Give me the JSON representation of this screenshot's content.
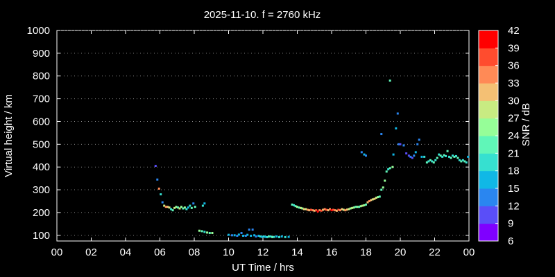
{
  "chart_data": {
    "type": "scatter",
    "title": "2025-11-10. f = 2760 kHz",
    "xlabel": "UT Time / hrs",
    "ylabel": "Virtual height / km",
    "xlim": [
      0,
      24
    ],
    "ylim": [
      75,
      1000
    ],
    "x_ticks": [
      "00",
      "02",
      "04",
      "06",
      "08",
      "10",
      "12",
      "14",
      "16",
      "18",
      "20",
      "22",
      "00"
    ],
    "y_ticks": [
      "100",
      "200",
      "300",
      "400",
      "500",
      "600",
      "700",
      "800",
      "900",
      "1000"
    ],
    "colorbar": {
      "label": "SNR / dB",
      "ticks": [
        "6",
        "9",
        "12",
        "15",
        "18",
        "21",
        "24",
        "27",
        "30",
        "33",
        "36",
        "39",
        "42"
      ],
      "colors": [
        "#7f00ff",
        "#5a4ef8",
        "#2a86f0",
        "#10b8e6",
        "#36e0d0",
        "#60f6b8",
        "#96fe98",
        "#c8eb82",
        "#f4c074",
        "#ff8a56",
        "#ff4c2e",
        "#ff0000"
      ]
    },
    "points": [
      [
        5.75,
        405,
        10
      ],
      [
        5.85,
        345,
        12
      ],
      [
        5.95,
        305,
        33
      ],
      [
        6.05,
        280,
        18
      ],
      [
        6.15,
        245,
        12
      ],
      [
        6.25,
        230,
        27
      ],
      [
        6.35,
        225,
        33
      ],
      [
        6.45,
        225,
        30
      ],
      [
        6.55,
        222,
        27
      ],
      [
        6.65,
        215,
        18
      ],
      [
        6.75,
        210,
        21
      ],
      [
        6.85,
        220,
        27
      ],
      [
        6.95,
        225,
        24
      ],
      [
        7.05,
        222,
        21
      ],
      [
        7.15,
        218,
        27
      ],
      [
        7.25,
        225,
        24
      ],
      [
        7.35,
        218,
        21
      ],
      [
        7.45,
        222,
        24
      ],
      [
        7.55,
        215,
        18
      ],
      [
        7.65,
        222,
        15
      ],
      [
        7.75,
        230,
        18
      ],
      [
        7.85,
        220,
        21
      ],
      [
        7.95,
        240,
        12
      ],
      [
        8.05,
        225,
        21
      ],
      [
        8.5,
        230,
        18
      ],
      [
        8.6,
        240,
        15
      ],
      [
        8.3,
        120,
        24
      ],
      [
        8.45,
        118,
        21
      ],
      [
        8.6,
        115,
        18
      ],
      [
        8.75,
        112,
        24
      ],
      [
        8.9,
        110,
        21
      ],
      [
        9.05,
        110,
        24
      ],
      [
        10.0,
        102,
        15
      ],
      [
        10.2,
        100,
        12
      ],
      [
        10.35,
        100,
        15
      ],
      [
        10.5,
        98,
        12
      ],
      [
        10.6,
        103,
        15
      ],
      [
        10.75,
        110,
        12
      ],
      [
        10.85,
        98,
        15
      ],
      [
        11.0,
        98,
        12
      ],
      [
        11.1,
        102,
        15
      ],
      [
        11.2,
        125,
        12
      ],
      [
        11.3,
        98,
        15
      ],
      [
        11.4,
        125,
        12
      ],
      [
        11.5,
        100,
        15
      ],
      [
        11.6,
        95,
        12
      ],
      [
        11.75,
        98,
        15
      ],
      [
        11.85,
        95,
        18
      ],
      [
        11.95,
        93,
        15
      ],
      [
        12.05,
        95,
        18
      ],
      [
        12.15,
        93,
        15
      ],
      [
        12.25,
        92,
        18
      ],
      [
        12.35,
        95,
        21
      ],
      [
        12.45,
        95,
        18
      ],
      [
        12.55,
        92,
        21
      ],
      [
        12.65,
        93,
        18
      ],
      [
        12.8,
        95,
        15
      ],
      [
        12.95,
        92,
        18
      ],
      [
        13.1,
        95,
        15
      ],
      [
        13.3,
        92,
        18
      ],
      [
        13.5,
        93,
        15
      ],
      [
        13.7,
        235,
        21
      ],
      [
        13.8,
        232,
        18
      ],
      [
        13.9,
        228,
        21
      ],
      [
        14.0,
        225,
        24
      ],
      [
        14.1,
        222,
        21
      ],
      [
        14.2,
        220,
        27
      ],
      [
        14.3,
        218,
        24
      ],
      [
        14.4,
        215,
        30
      ],
      [
        14.5,
        215,
        27
      ],
      [
        14.6,
        212,
        33
      ],
      [
        14.7,
        210,
        30
      ],
      [
        14.8,
        212,
        36
      ],
      [
        14.9,
        210,
        33
      ],
      [
        15.0,
        208,
        30
      ],
      [
        15.1,
        210,
        36
      ],
      [
        15.2,
        205,
        39
      ],
      [
        15.3,
        210,
        33
      ],
      [
        15.4,
        208,
        36
      ],
      [
        15.5,
        212,
        30
      ],
      [
        15.6,
        215,
        33
      ],
      [
        15.7,
        212,
        36
      ],
      [
        15.8,
        210,
        30
      ],
      [
        15.9,
        215,
        33
      ],
      [
        16.0,
        210,
        39
      ],
      [
        16.1,
        212,
        36
      ],
      [
        16.2,
        210,
        33
      ],
      [
        16.3,
        208,
        30
      ],
      [
        16.4,
        212,
        36
      ],
      [
        16.5,
        210,
        33
      ],
      [
        16.6,
        215,
        30
      ],
      [
        16.7,
        212,
        27
      ],
      [
        16.8,
        210,
        33
      ],
      [
        16.9,
        213,
        30
      ],
      [
        17.0,
        215,
        27
      ],
      [
        17.1,
        218,
        24
      ],
      [
        17.2,
        220,
        27
      ],
      [
        17.3,
        222,
        24
      ],
      [
        17.4,
        225,
        21
      ],
      [
        17.5,
        225,
        24
      ],
      [
        17.6,
        225,
        21
      ],
      [
        17.7,
        228,
        24
      ],
      [
        17.8,
        230,
        27
      ],
      [
        17.9,
        232,
        24
      ],
      [
        18.0,
        235,
        21
      ],
      [
        18.1,
        245,
        30
      ],
      [
        18.2,
        250,
        33
      ],
      [
        18.3,
        255,
        30
      ],
      [
        18.4,
        258,
        27
      ],
      [
        18.5,
        260,
        30
      ],
      [
        18.6,
        265,
        27
      ],
      [
        18.7,
        268,
        24
      ],
      [
        18.8,
        270,
        21
      ],
      [
        18.9,
        300,
        21
      ],
      [
        19.0,
        310,
        24
      ],
      [
        19.1,
        340,
        24
      ],
      [
        19.2,
        380,
        21
      ],
      [
        19.3,
        390,
        18
      ],
      [
        19.4,
        395,
        21
      ],
      [
        19.55,
        400,
        24
      ],
      [
        17.75,
        465,
        12
      ],
      [
        17.9,
        455,
        15
      ],
      [
        18.0,
        450,
        12
      ],
      [
        18.9,
        545,
        12
      ],
      [
        19.4,
        780,
        21
      ],
      [
        19.6,
        455,
        15
      ],
      [
        19.75,
        570,
        15
      ],
      [
        19.85,
        635,
        12
      ],
      [
        19.9,
        500,
        12
      ],
      [
        20.0,
        500,
        10
      ],
      [
        20.2,
        495,
        12
      ],
      [
        20.35,
        460,
        10
      ],
      [
        20.5,
        450,
        9
      ],
      [
        20.6,
        445,
        12
      ],
      [
        20.7,
        440,
        9
      ],
      [
        20.8,
        450,
        12
      ],
      [
        20.9,
        465,
        15
      ],
      [
        21.0,
        500,
        12
      ],
      [
        21.1,
        520,
        12
      ],
      [
        21.25,
        445,
        15
      ],
      [
        21.4,
        445,
        18
      ],
      [
        21.55,
        420,
        21
      ],
      [
        21.65,
        425,
        18
      ],
      [
        21.75,
        430,
        21
      ],
      [
        21.85,
        425,
        18
      ],
      [
        21.95,
        420,
        21
      ],
      [
        22.05,
        430,
        18
      ],
      [
        22.15,
        440,
        21
      ],
      [
        22.25,
        455,
        18
      ],
      [
        22.35,
        450,
        21
      ],
      [
        22.45,
        445,
        18
      ],
      [
        22.55,
        452,
        21
      ],
      [
        22.65,
        448,
        18
      ],
      [
        22.75,
        470,
        21
      ],
      [
        22.85,
        445,
        18
      ],
      [
        22.95,
        440,
        21
      ],
      [
        23.05,
        450,
        18
      ],
      [
        23.15,
        445,
        21
      ],
      [
        23.25,
        448,
        18
      ],
      [
        23.35,
        440,
        21
      ],
      [
        23.45,
        430,
        18
      ],
      [
        23.55,
        425,
        21
      ],
      [
        23.65,
        430,
        18
      ],
      [
        23.75,
        425,
        21
      ],
      [
        23.85,
        420,
        18
      ],
      [
        23.95,
        445,
        15
      ]
    ]
  }
}
